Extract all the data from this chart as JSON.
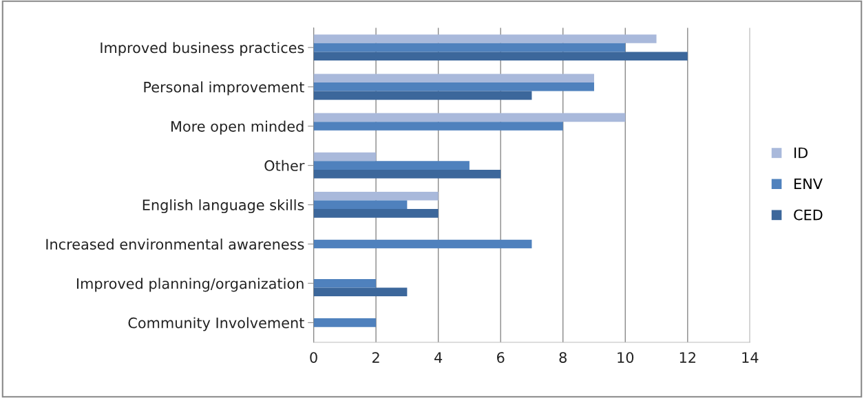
{
  "chart_data": {
    "type": "bar",
    "orientation": "horizontal",
    "categories": [
      "Improved business practices",
      "Personal improvement",
      "More open minded",
      "Other",
      "English language skills",
      "Increased environmental awareness",
      "Improved planning/organization",
      "Community Involvement"
    ],
    "series": [
      {
        "name": "ID",
        "color": "#a9b9db",
        "values": [
          11,
          9,
          10,
          2,
          4,
          null,
          null,
          null
        ]
      },
      {
        "name": "ENV",
        "color": "#4f81bd",
        "values": [
          10,
          9,
          8,
          5,
          3,
          7,
          2,
          2
        ]
      },
      {
        "name": "CED",
        "color": "#3c679b",
        "values": [
          12,
          7,
          null,
          6,
          4,
          null,
          3,
          null
        ]
      }
    ],
    "xlim": [
      0,
      14
    ],
    "xticks": [
      0,
      2,
      4,
      6,
      8,
      10,
      12,
      14
    ],
    "grid": "x",
    "legend": "right"
  }
}
